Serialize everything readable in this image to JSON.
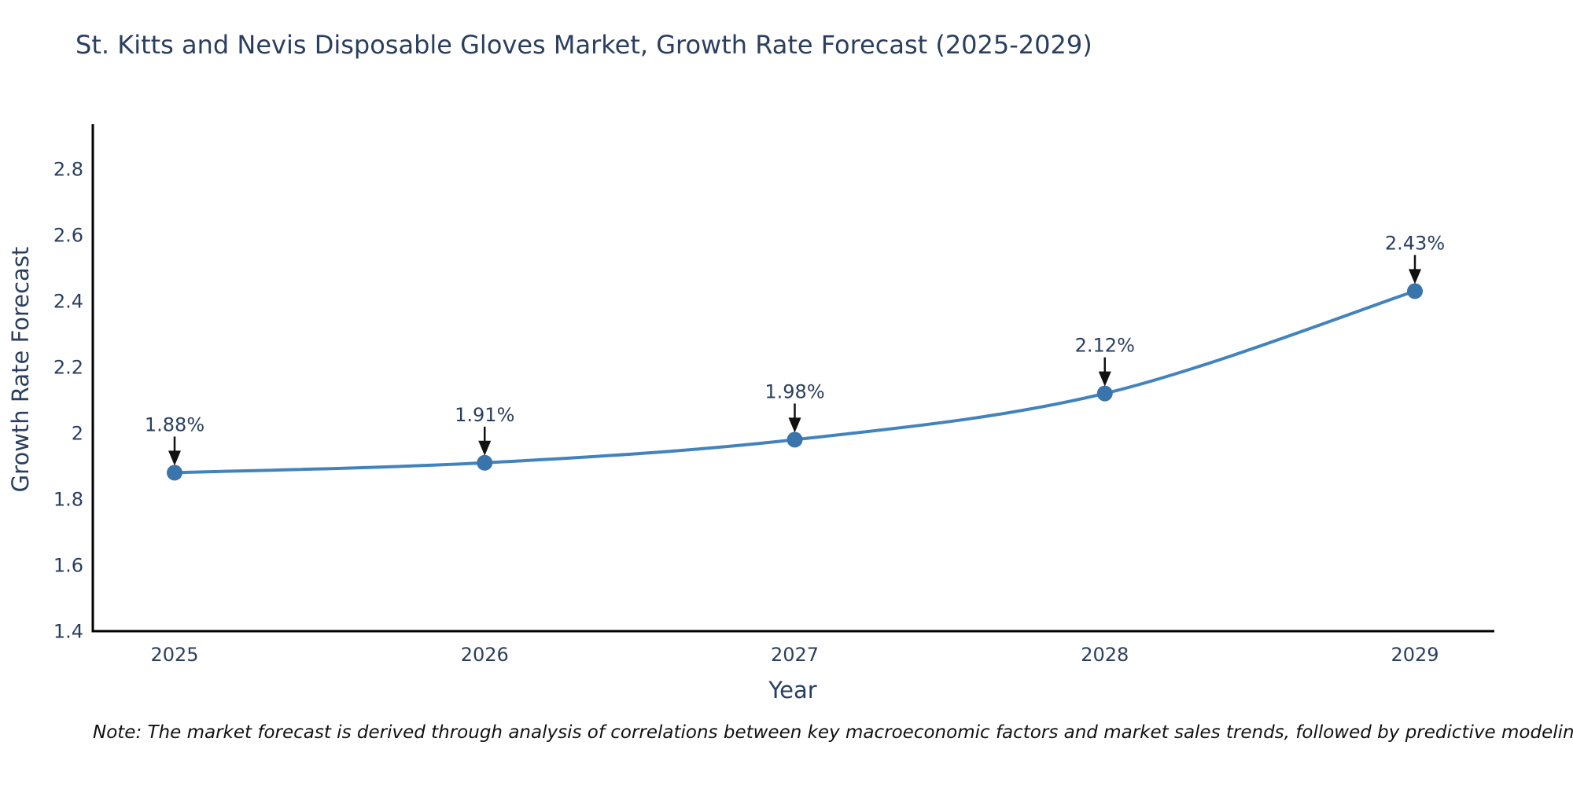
{
  "chart_data": {
    "type": "line",
    "title": "St. Kitts and Nevis Disposable Gloves Market, Growth Rate Forecast (2025-2029)",
    "xlabel": "Year",
    "ylabel": "Growth Rate Forecast",
    "categories": [
      "2025",
      "2026",
      "2027",
      "2028",
      "2029"
    ],
    "values": [
      1.88,
      1.91,
      1.98,
      2.12,
      2.43
    ],
    "point_labels": [
      "1.88%",
      "1.91%",
      "1.98%",
      "2.12%",
      "2.43%"
    ],
    "y_ticks": [
      "2.8",
      "2.6",
      "2.4",
      "2.2",
      "2",
      "1.8",
      "1.6",
      "1.4"
    ],
    "ylim": [
      1.4,
      2.93
    ],
    "grid": false,
    "legend_position": "none",
    "line_shape": "spline",
    "colors": {
      "line": "#4383bd",
      "marker": "#3a74ad",
      "text": "#2a3f5f",
      "axis": "#000000",
      "arrow": "#111111",
      "background": "#ffffff"
    }
  },
  "note": "Note: The market forecast is derived through analysis of correlations between key macroeconomic factors and market sales trends, followed by predictive modeling to project future sales"
}
